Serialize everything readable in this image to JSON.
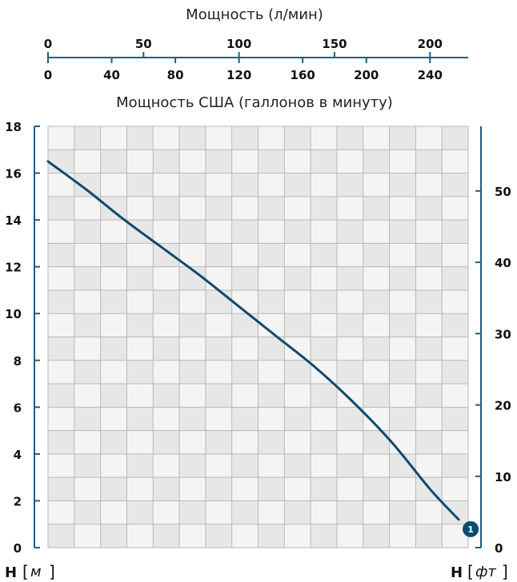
{
  "chart_data": {
    "type": "line",
    "x_top": {
      "label": "Мощность (л/мин)",
      "ticks": [
        0,
        50,
        100,
        150,
        200
      ],
      "range": [
        0,
        220
      ]
    },
    "x_bottom": {
      "label": "Мощность США (галлонов в минуту)",
      "ticks": [
        0,
        40,
        80,
        120,
        160,
        200,
        240
      ],
      "range": [
        0,
        264
      ]
    },
    "y_left": {
      "unit_main": "H",
      "unit_sub": "м",
      "ticks": [
        0,
        2,
        4,
        6,
        8,
        10,
        12,
        14,
        16,
        18
      ],
      "range": [
        0,
        18
      ]
    },
    "y_right": {
      "unit_main": "H",
      "unit_sub": "фт",
      "ticks": [
        0,
        10,
        20,
        30,
        40,
        50
      ],
      "range": [
        0,
        59.06
      ]
    },
    "grid": true,
    "series": [
      {
        "marker_label": "1",
        "x_lpm": [
          0,
          20,
          40,
          60,
          80,
          100,
          120,
          140,
          160,
          180,
          200,
          215
        ],
        "y_m": [
          16.5,
          15.3,
          14.0,
          12.8,
          11.6,
          10.3,
          9.0,
          7.7,
          6.2,
          4.5,
          2.5,
          1.2
        ]
      }
    ],
    "colors": {
      "line": "#0d4a6e",
      "axis": "#1f5f82",
      "grid": "#b9b9b9",
      "cell_a": "#f4f4f4",
      "cell_b": "#e7e7e7"
    }
  }
}
